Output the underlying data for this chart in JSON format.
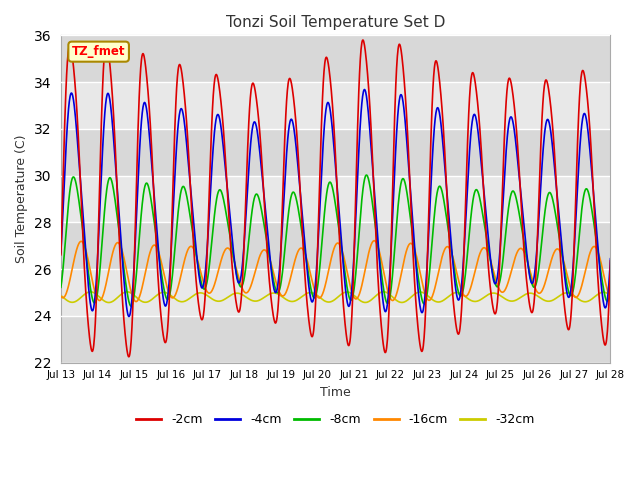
{
  "title": "Tonzi Soil Temperature Set D",
  "xlabel": "Time",
  "ylabel": "Soil Temperature (C)",
  "ylim": [
    22,
    36
  ],
  "xlim": [
    0,
    360
  ],
  "fig_facecolor": "#ffffff",
  "plot_facecolor": "#f0f0f0",
  "label_box_text": "TZ_fmet",
  "label_box_facecolor": "#ffffcc",
  "label_box_edgecolor": "#aa8800",
  "series": {
    "-2cm": {
      "color": "#dd0000",
      "lw": 1.2
    },
    "-4cm": {
      "color": "#0000dd",
      "lw": 1.2
    },
    "-8cm": {
      "color": "#00bb00",
      "lw": 1.2
    },
    "-16cm": {
      "color": "#ff8800",
      "lw": 1.2
    },
    "-32cm": {
      "color": "#cccc00",
      "lw": 1.2
    }
  },
  "tick_labels": [
    "Jul 13",
    "Jul 14",
    "Jul 15",
    "Jul 16",
    "Jul 17",
    "Jul 18",
    "Jul 19",
    "Jul 20",
    "Jul 21",
    "Jul 22",
    "Jul 23",
    "Jul 24",
    "Jul 25",
    "Jul 26",
    "Jul 27",
    "Jul 28"
  ],
  "tick_positions": [
    0,
    24,
    48,
    72,
    96,
    120,
    144,
    168,
    192,
    216,
    240,
    264,
    288,
    312,
    336,
    360
  ],
  "yticks": [
    22,
    24,
    26,
    28,
    30,
    32,
    34,
    36
  ]
}
